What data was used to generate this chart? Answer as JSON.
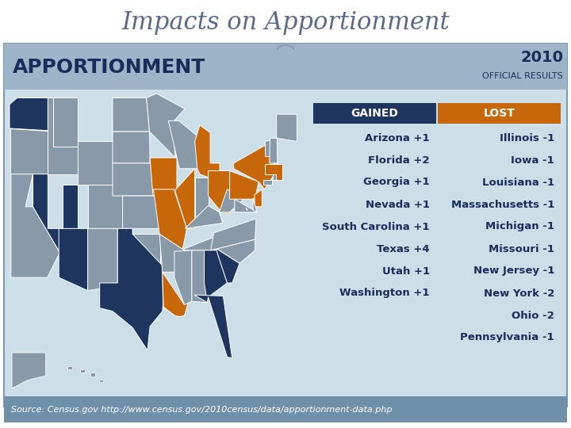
{
  "title": "Impacts on Apportionment",
  "title_fontsize": 22,
  "title_color": "#5a6a8a",
  "title_font": "DejaVu Serif",
  "bg_color": "#ffffff",
  "header_bg": "#9eb4c8",
  "header_text": "APPORTIONMENT",
  "header_text_color": "#1a2d5a",
  "header_text_fontsize": 18,
  "year_text": "2010",
  "results_text": "OFFICIAL RESULTS",
  "year_color": "#1a2d5a",
  "content_bg": "#ccdee8",
  "gained_header": "GAINED",
  "lost_header": "LOST",
  "gained_bg": "#1e3560",
  "lost_bg": "#c8660a",
  "header_text_white": "#ffffff",
  "gained_entries": [
    "Arizona +1",
    "Florida +2",
    "Georgia +1",
    "Nevada +1",
    "South Carolina +1",
    "Texas +4",
    "Utah +1",
    "Washington +1"
  ],
  "lost_entries": [
    "Illinois -1",
    "Iowa -1",
    "Louisiana -1",
    "Massachusetts -1",
    "Michigan -1",
    "Missouri -1",
    "New Jersey -1",
    "New York -2",
    "Ohio -2",
    "Pennsylvania -1"
  ],
  "source_text": "Source: Census.gov http://www.census.gov/2010census/data/apportionment-data.php",
  "source_bg": "#7090aa",
  "source_color": "#ffffff",
  "table_text_color": "#1a2d5a",
  "table_fontsize": 9.5,
  "footer_fontsize": 8,
  "map_gray": "#8899aa",
  "map_gained": "#1e3560",
  "map_lost": "#c8660a",
  "map_border": "#ffffff",
  "alaska_gray": "#8899aa"
}
